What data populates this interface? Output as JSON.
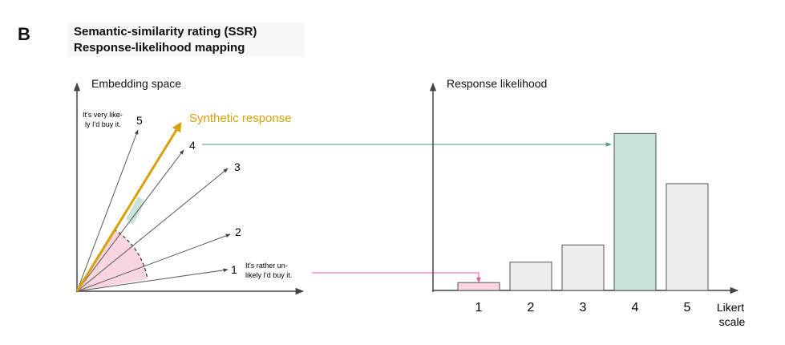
{
  "panel_label": "B",
  "title": {
    "line1": "Semantic-similarity rating (SSR)",
    "line2": "Response-likelihood mapping"
  },
  "embedding_panel": {
    "axis_label": "Embedding space",
    "synthetic_response_label": "Synthetic response",
    "vectors": [
      {
        "label": "1"
      },
      {
        "label": "2"
      },
      {
        "label": "3"
      },
      {
        "label": "4"
      },
      {
        "label": "5"
      }
    ],
    "anchor_top_lines": [
      "It's very like-",
      "ly I'd buy it."
    ],
    "anchor_bottom_lines": [
      "It's rather un-",
      "likely I'd buy it."
    ]
  },
  "chart_data": {
    "type": "bar",
    "title": "",
    "ylabel": "Response likelihood",
    "xlabel": "Likert scale",
    "xlabel_lines": [
      "Likert",
      "scale"
    ],
    "categories": [
      "1",
      "2",
      "3",
      "4",
      "5"
    ],
    "values": [
      0.05,
      0.18,
      0.29,
      1.0,
      0.68
    ],
    "ylim": [
      0,
      1.15
    ],
    "highlighted": {
      "1": "#f9d6df",
      "4": "#c9e2da"
    },
    "default_fill": "#eeeeee"
  },
  "colors": {
    "synthetic": "#d9a008",
    "teal_arrow": "#4f9e86",
    "pink_arrow": "#e55aa0",
    "pink_fill": "#f9d6df",
    "teal_fill": "#c9e2da",
    "axis": "#444444"
  }
}
